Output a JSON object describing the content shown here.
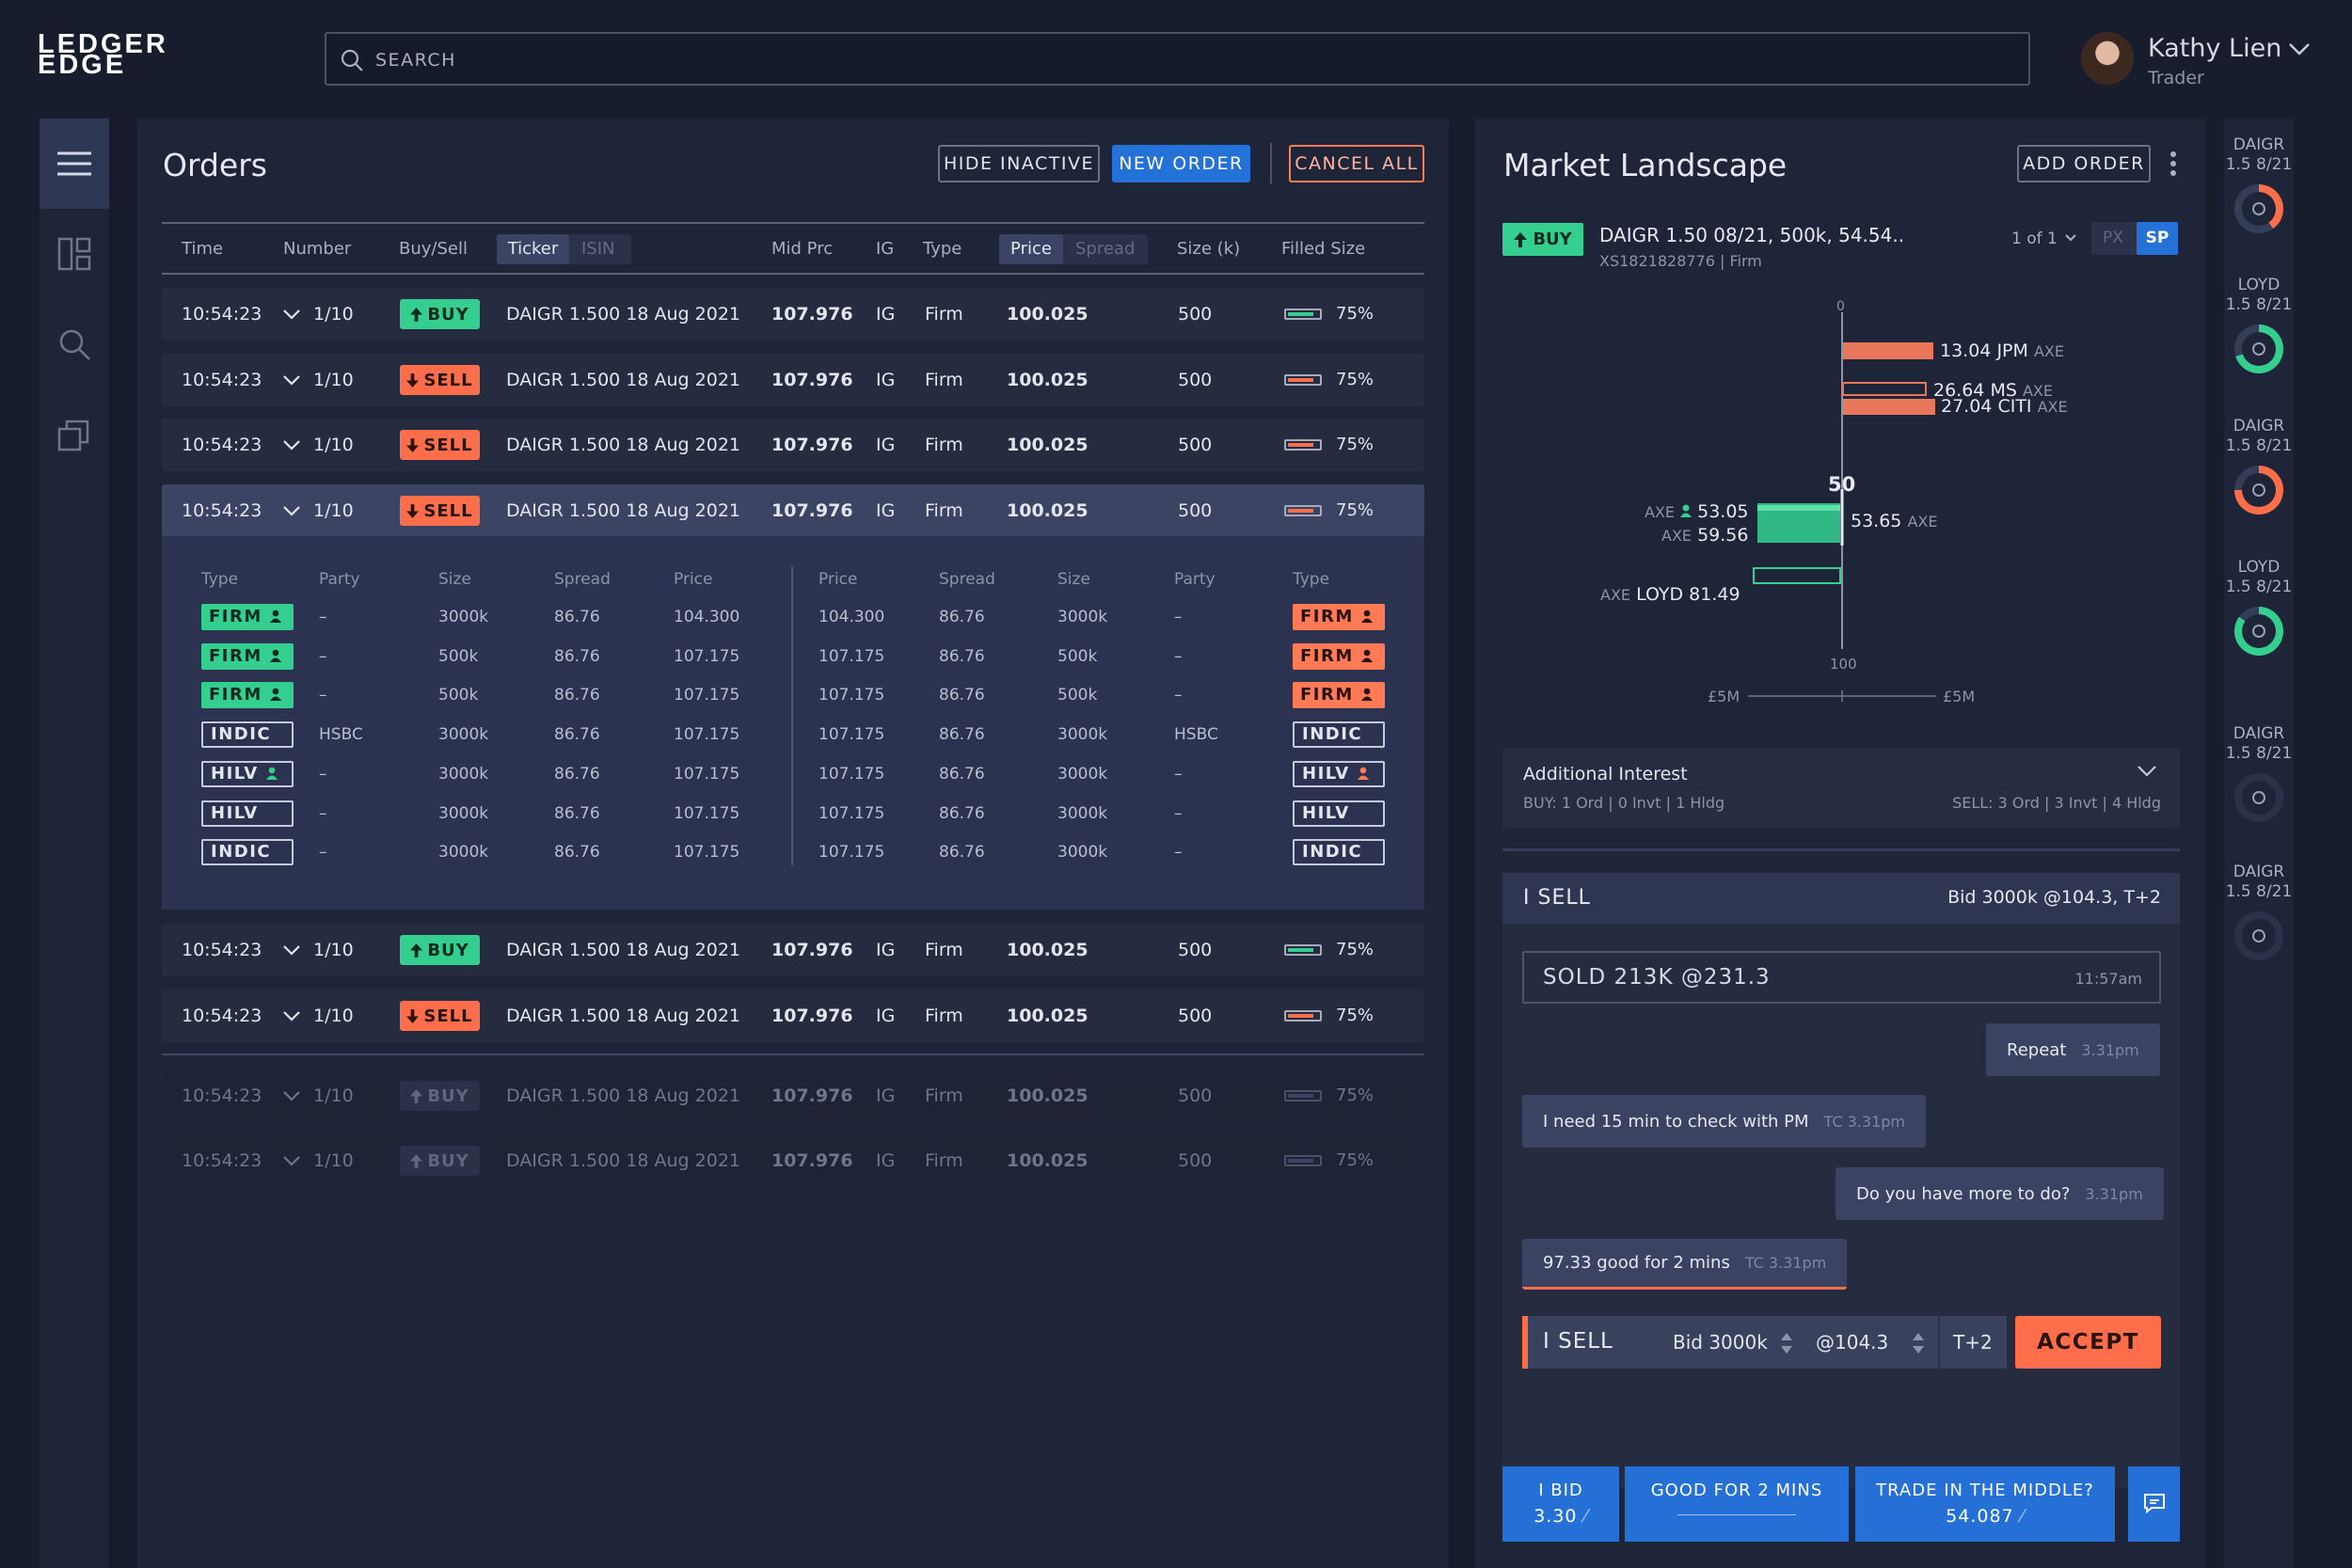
{
  "app": {
    "logo_line1": "LEDGER",
    "logo_line2": "EDGE",
    "search_placeholder": "SEARCH"
  },
  "user": {
    "name": "Kathy Lien",
    "role": "Trader"
  },
  "orders": {
    "title": "Orders",
    "buttons": {
      "hide_inactive": "HIDE INACTIVE",
      "new_order": "NEW ORDER",
      "cancel_all": "CANCEL ALL"
    },
    "columns": {
      "time": "Time",
      "number": "Number",
      "buysell": "Buy/Sell",
      "ticker": "Ticker",
      "isin": "ISIN",
      "mid": "Mid Prc",
      "ig": "IG",
      "type": "Type",
      "price": "Price",
      "spread": "Spread",
      "size": "Size (k)",
      "filled": "Filled Size"
    },
    "rows": [
      {
        "time": "10:54:23",
        "number": "1/10",
        "side": "BUY",
        "desc": "DAIGR 1.500 18 Aug 2021",
        "mid": "107.976",
        "ig": "IG",
        "type": "Firm",
        "price": "100.025",
        "size": "500",
        "filled": "75%"
      },
      {
        "time": "10:54:23",
        "number": "1/10",
        "side": "SELL",
        "desc": "DAIGR 1.500 18 Aug 2021",
        "mid": "107.976",
        "ig": "IG",
        "type": "Firm",
        "price": "100.025",
        "size": "500",
        "filled": "75%"
      },
      {
        "time": "10:54:23",
        "number": "1/10",
        "side": "SELL",
        "desc": "DAIGR 1.500 18 Aug 2021",
        "mid": "107.976",
        "ig": "IG",
        "type": "Firm",
        "price": "100.025",
        "size": "500",
        "filled": "75%"
      },
      {
        "time": "10:54:23",
        "number": "1/10",
        "side": "SELL",
        "desc": "DAIGR 1.500 18 Aug 2021",
        "mid": "107.976",
        "ig": "IG",
        "type": "Firm",
        "price": "100.025",
        "size": "500",
        "filled": "75%"
      },
      {
        "time": "10:54:23",
        "number": "1/10",
        "side": "BUY",
        "desc": "DAIGR 1.500 18 Aug 2021",
        "mid": "107.976",
        "ig": "IG",
        "type": "Firm",
        "price": "100.025",
        "size": "500",
        "filled": "75%"
      },
      {
        "time": "10:54:23",
        "number": "1/10",
        "side": "SELL",
        "desc": "DAIGR 1.500 18 Aug 2021",
        "mid": "107.976",
        "ig": "IG",
        "type": "Firm",
        "price": "100.025",
        "size": "500",
        "filled": "75%"
      },
      {
        "time": "10:54:23",
        "number": "1/10",
        "side": "BUY",
        "desc": "DAIGR 1.500 18 Aug 2021",
        "mid": "107.976",
        "ig": "IG",
        "type": "Firm",
        "price": "100.025",
        "size": "500",
        "filled": "75%"
      },
      {
        "time": "10:54:23",
        "number": "1/10",
        "side": "BUY",
        "desc": "DAIGR 1.500 18 Aug 2021",
        "mid": "107.976",
        "ig": "IG",
        "type": "Firm",
        "price": "100.025",
        "size": "500",
        "filled": "75%"
      }
    ],
    "detail": {
      "left_headers": [
        "Type",
        "Party",
        "Size",
        "Spread",
        "Price"
      ],
      "right_headers": [
        "Price",
        "Spread",
        "Size",
        "Party",
        "Type"
      ],
      "left": [
        {
          "type": "FIRM",
          "party": "–",
          "size": "3000k",
          "spread": "86.76",
          "price": "104.300"
        },
        {
          "type": "FIRM",
          "party": "–",
          "size": "500k",
          "spread": "86.76",
          "price": "107.175"
        },
        {
          "type": "FIRM",
          "party": "–",
          "size": "500k",
          "spread": "86.76",
          "price": "107.175"
        },
        {
          "type": "INDIC",
          "party": "HSBC",
          "size": "3000k",
          "spread": "86.76",
          "price": "107.175"
        },
        {
          "type": "HILV",
          "party": "–",
          "size": "3000k",
          "spread": "86.76",
          "price": "107.175"
        },
        {
          "type": "HILV",
          "party": "–",
          "size": "3000k",
          "spread": "86.76",
          "price": "107.175"
        },
        {
          "type": "INDIC",
          "party": "–",
          "size": "3000k",
          "spread": "86.76",
          "price": "107.175"
        }
      ],
      "right": [
        {
          "price": "104.300",
          "spread": "86.76",
          "size": "3000k",
          "party": "–",
          "type": "FIRM"
        },
        {
          "price": "107.175",
          "spread": "86.76",
          "size": "500k",
          "party": "–",
          "type": "FIRM"
        },
        {
          "price": "107.175",
          "spread": "86.76",
          "size": "500k",
          "party": "–",
          "type": "FIRM"
        },
        {
          "price": "107.175",
          "spread": "86.76",
          "size": "3000k",
          "party": "HSBC",
          "type": "INDIC"
        },
        {
          "price": "107.175",
          "spread": "86.76",
          "size": "3000k",
          "party": "–",
          "type": "HILV"
        },
        {
          "price": "107.175",
          "spread": "86.76",
          "size": "3000k",
          "party": "–",
          "type": "HILV"
        },
        {
          "price": "107.175",
          "spread": "86.76",
          "size": "3000k",
          "party": "–",
          "type": "INDIC"
        }
      ]
    }
  },
  "market": {
    "title": "Market Landscape",
    "add_order": "ADD ORDER",
    "side": "BUY",
    "bond": "DAIGR 1.50 08/21, 500k, 54.54..",
    "sub": "XS1821828776 | Firm",
    "pager": "1 of 1",
    "px": "PX",
    "sp": "SP",
    "axis_top": "0",
    "axis_mid": "50",
    "axis_bottom": "100",
    "scale_left": "£5M",
    "scale_right": "£5M",
    "labels": {
      "jpm_val": "13.04",
      "jpm_name": "JPM",
      "ms_val": "26.64",
      "ms_name": "MS",
      "citi_val": "27.04",
      "citi_name": "CITI",
      "axe": "AXE",
      "b1_val": "53.05",
      "b2_val": "59.56",
      "ask_val": "53.65",
      "loyd_name": "LOYD",
      "loyd_val": "81.49"
    },
    "add_interest": {
      "title": "Additional Interest",
      "buy": "BUY: 1 Ord | 0 Invt | 1 Hldg",
      "sell": "SELL: 3 Ord | 3 Invt | 4 Hldg"
    },
    "chat": {
      "header_left": "I SELL",
      "header_right": "Bid 3000k @104.3, T+2",
      "sold": "SOLD 213K @231.3",
      "sold_time": "11:57am",
      "m1": "Repeat",
      "m1t": "3.31pm",
      "m2": "I need 15 min to check with PM",
      "m2t": "TC 3.31pm",
      "m3": "Do you have more to do?",
      "m3t": "3.31pm",
      "m4": "97.33 good for 2 mins",
      "m4t": "TC 3.31pm",
      "cmp_side": "I SELL",
      "cmp_bid": "Bid 3000k",
      "cmp_price": "@104.3",
      "cmp_settle": "T+2",
      "accept": "ACCEPT"
    },
    "actions": {
      "a1": "I BID",
      "a1v": "3.30",
      "a2": "GOOD FOR 2 MINS",
      "a3": "TRADE IN THE MIDDLE?",
      "a3v": "54.087"
    }
  },
  "rail": [
    {
      "name": "DAIGR",
      "sub": "1.5 8/21"
    },
    {
      "name": "LOYD",
      "sub": "1.5 8/21"
    },
    {
      "name": "DAIGR",
      "sub": "1.5 8/21"
    },
    {
      "name": "LOYD",
      "sub": "1.5 8/21"
    },
    {
      "name": "DAIGR",
      "sub": "1.5 8/21"
    },
    {
      "name": "DAIGR",
      "sub": "1.5 8/21"
    }
  ],
  "colors": {
    "buy": "#34cf8e",
    "sell": "#ff6e4a",
    "accent": "#2471d8",
    "bg": "#181d2e",
    "panel": "#1f2538"
  }
}
